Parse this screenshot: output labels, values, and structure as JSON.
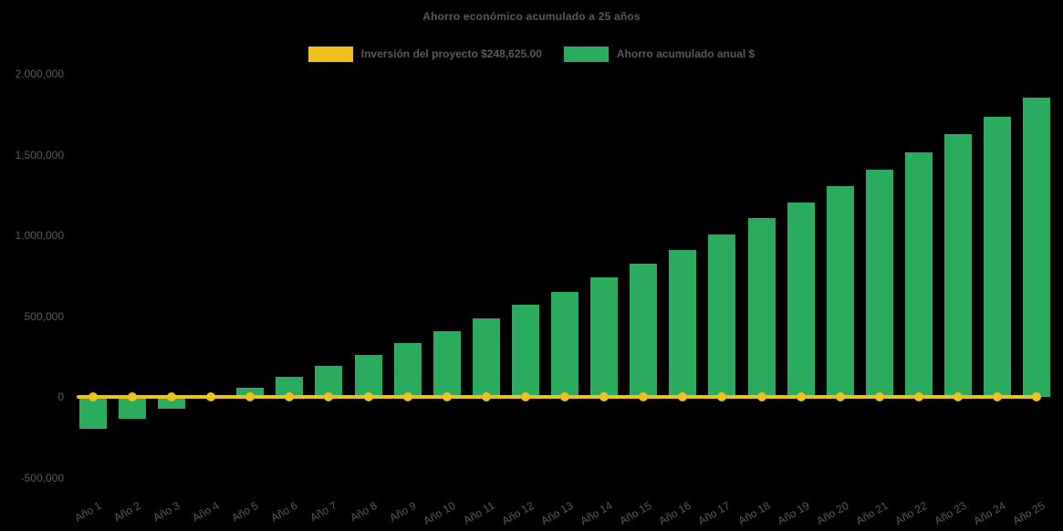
{
  "chart_data": {
    "type": "bar",
    "title": "Ahorro económico acumulado a 25 años",
    "categories": [
      "Año 1",
      "Año 2",
      "Año 3",
      "Año 4",
      "Año 5",
      "Año 6",
      "Año 7",
      "Año 8",
      "Año 9",
      "Año 10",
      "Año 11",
      "Año 12",
      "Año 13",
      "Año 14",
      "Año 15",
      "Año 16",
      "Año 17",
      "Año 18",
      "Año 19",
      "Año 20",
      "Año 21",
      "Año 22",
      "Año 23",
      "Año 24",
      "Año 25"
    ],
    "series": [
      {
        "name": "Inversión del proyecto $248,625.00",
        "type": "line",
        "color": "#eec21b",
        "values": [
          0,
          0,
          0,
          0,
          0,
          0,
          0,
          0,
          0,
          0,
          0,
          0,
          0,
          0,
          0,
          0,
          0,
          0,
          0,
          0,
          0,
          0,
          0,
          0,
          0
        ]
      },
      {
        "name": "Ahorro acumulado anual $",
        "type": "bar",
        "color": "#2bab5e",
        "values": [
          -195000,
          -135000,
          -75000,
          -10000,
          55000,
          125000,
          190000,
          260000,
          335000,
          405000,
          485000,
          570000,
          650000,
          740000,
          825000,
          910000,
          1005000,
          1105000,
          1205000,
          1305000,
          1405000,
          1515000,
          1625000,
          1735000,
          1855000
        ]
      }
    ],
    "ylim": [
      -500000,
      2000000
    ],
    "yticks": [
      -500000,
      0,
      500000,
      1000000,
      1500000,
      2000000
    ],
    "ytick_labels": [
      "-500,000",
      "0",
      "500,000",
      "1,000,000",
      "1,500,000",
      "2,000,000"
    ],
    "grid": false,
    "legend_position": "top",
    "background": "#000000",
    "text_color": "#595959"
  }
}
